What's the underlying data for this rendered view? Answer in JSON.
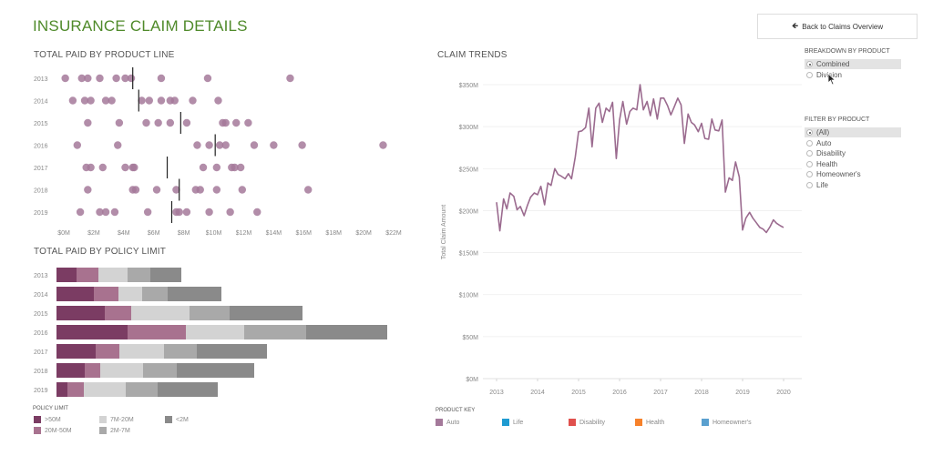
{
  "header": {
    "title": "INSURANCE CLAIM DETAILS",
    "back_button": "Back to Claims Overview"
  },
  "controls": {
    "breakdown": {
      "label": "BREAKDOWN BY PRODUCT",
      "options": [
        "Combined",
        "Division"
      ],
      "selected": "Combined"
    },
    "filter": {
      "label": "FILTER BY PRODUCT",
      "options": [
        "(All)",
        "Auto",
        "Disability",
        "Health",
        "Homeowner's",
        "Life"
      ],
      "selected": "(All)"
    }
  },
  "colors": {
    "title": "#4f8a2a",
    "dot": "#a4799a",
    "median": "#222222",
    "line": "#9b6b8f",
    "policy": {
      ">50M": "#7b3c63",
      "20M-50M": "#a8728f",
      "7M-20M": "#d3d3d3",
      "2M-7M": "#a9a9a9",
      "<2M": "#8a8a8a"
    },
    "product": {
      "Auto": "#a4799a",
      "Life": "#1f9bd1",
      "Disability": "#e0504d",
      "Health": "#f7812a",
      "Homeowner's": "#5aa0cf"
    }
  },
  "chart_data": [
    {
      "type": "scatter",
      "title": "TOTAL PAID BY PRODUCT LINE",
      "xlabel": "",
      "ylabel": "",
      "x_ticks": [
        "$0M",
        "$2M",
        "$4M",
        "$6M",
        "$8M",
        "$10M",
        "$12M",
        "$14M",
        "$16M",
        "$18M",
        "$20M",
        "$22M"
      ],
      "xlim": [
        0,
        22
      ],
      "categories": [
        "2013",
        "2014",
        "2015",
        "2016",
        "2017",
        "2018",
        "2019"
      ],
      "series": [
        {
          "name": "2013",
          "values": [
            0.1,
            1.2,
            1.6,
            2.4,
            3.5,
            4.1,
            4.5,
            6.5,
            9.6,
            15.1
          ],
          "median": 4.6
        },
        {
          "name": "2014",
          "values": [
            0.6,
            1.4,
            1.8,
            2.8,
            3.2,
            5.2,
            5.7,
            6.5,
            7.1,
            7.4,
            8.6,
            10.3
          ],
          "median": 5.0
        },
        {
          "name": "2015",
          "values": [
            1.6,
            3.7,
            5.5,
            6.3,
            7.1,
            8.2,
            10.6,
            10.8,
            11.5,
            12.3
          ],
          "median": 7.8
        },
        {
          "name": "2016",
          "values": [
            0.9,
            3.6,
            8.9,
            9.7,
            10.4,
            10.8,
            12.7,
            14.0,
            15.9,
            21.3
          ],
          "median": 10.1
        },
        {
          "name": "2017",
          "values": [
            1.5,
            1.8,
            2.6,
            4.1,
            4.6,
            4.7,
            9.3,
            10.2,
            11.2,
            11.4,
            11.8
          ],
          "median": 6.9
        },
        {
          "name": "2018",
          "values": [
            1.6,
            4.6,
            4.8,
            6.2,
            7.5,
            8.8,
            9.1,
            10.2,
            11.9,
            16.3
          ],
          "median": 7.7
        },
        {
          "name": "2019",
          "values": [
            1.1,
            2.4,
            2.8,
            3.4,
            5.6,
            7.5,
            7.7,
            8.2,
            9.7,
            11.1,
            12.9
          ],
          "median": 7.2
        }
      ]
    },
    {
      "type": "bar",
      "orientation": "horizontal",
      "stacked": true,
      "title": "TOTAL PAID BY POLICY LIMIT",
      "categories": [
        "2013",
        "2014",
        "2015",
        "2016",
        "2017",
        "2018",
        "2019"
      ],
      "legend_title": "POLICY LIMIT",
      "legend_placement": "bottom-left",
      "series": [
        {
          "name": ">50M",
          "values": [
            22,
            41,
            53,
            78,
            43,
            31,
            12
          ]
        },
        {
          "name": "20M-50M",
          "values": [
            24,
            27,
            29,
            64,
            26,
            17,
            18
          ]
        },
        {
          "name": "7M-20M",
          "values": [
            32,
            26,
            64,
            64,
            49,
            47,
            46
          ]
        },
        {
          "name": "2M-7M",
          "values": [
            25,
            28,
            44,
            68,
            36,
            37,
            35
          ]
        },
        {
          "name": "<2M",
          "values": [
            34,
            59,
            80,
            89,
            77,
            85,
            66
          ]
        }
      ],
      "legend_order": [
        ">50M",
        "20M-50M",
        "7M-20M",
        "2M-7M",
        "<2M"
      ]
    },
    {
      "type": "line",
      "title": "CLAIM TRENDS",
      "xlabel": "",
      "ylabel": "Total Claim Amount",
      "ylim": [
        0,
        350
      ],
      "y_ticks": [
        "$0M",
        "$50M",
        "$100M",
        "$150M",
        "$200M",
        "$250M",
        "$300M",
        "$350M"
      ],
      "x_ticks": [
        "2013",
        "2014",
        "2015",
        "2016",
        "2017",
        "2018",
        "2019",
        "2020"
      ],
      "xlim": [
        2013,
        2020
      ],
      "legend_title": "PRODUCT KEY",
      "legend": [
        "Auto",
        "Life",
        "Disability",
        "Health",
        "Homeowner's"
      ],
      "series": [
        {
          "name": "Combined",
          "x": [
            2013.0,
            2013.08,
            2013.17,
            2013.25,
            2013.33,
            2013.42,
            2013.5,
            2013.58,
            2013.67,
            2013.75,
            2013.83,
            2013.92,
            2014.0,
            2014.08,
            2014.17,
            2014.25,
            2014.33,
            2014.42,
            2014.5,
            2014.58,
            2014.67,
            2014.75,
            2014.83,
            2014.92,
            2015.0,
            2015.08,
            2015.17,
            2015.25,
            2015.33,
            2015.42,
            2015.5,
            2015.58,
            2015.67,
            2015.75,
            2015.83,
            2015.92,
            2016.0,
            2016.08,
            2016.17,
            2016.25,
            2016.33,
            2016.42,
            2016.5,
            2016.58,
            2016.67,
            2016.75,
            2016.83,
            2016.92,
            2017.0,
            2017.08,
            2017.17,
            2017.25,
            2017.33,
            2017.42,
            2017.5,
            2017.58,
            2017.67,
            2017.75,
            2017.83,
            2017.92,
            2018.0,
            2018.08,
            2018.17,
            2018.25,
            2018.33,
            2018.42,
            2018.5,
            2018.58,
            2018.67,
            2018.75,
            2018.83,
            2018.92,
            2019.0,
            2019.08,
            2019.17,
            2019.25,
            2019.33,
            2019.42,
            2019.5,
            2019.58,
            2019.67,
            2019.75,
            2019.83,
            2019.92,
            2020.0
          ],
          "values": [
            210,
            176,
            214,
            202,
            221,
            217,
            201,
            205,
            194,
            206,
            216,
            221,
            219,
            229,
            207,
            233,
            230,
            250,
            243,
            241,
            238,
            244,
            238,
            264,
            294,
            295,
            299,
            322,
            276,
            322,
            328,
            305,
            322,
            318,
            329,
            262,
            308,
            330,
            303,
            318,
            322,
            320,
            350,
            320,
            330,
            313,
            333,
            309,
            334,
            334,
            325,
            314,
            323,
            334,
            326,
            280,
            315,
            305,
            302,
            294,
            304,
            286,
            285,
            309,
            296,
            295,
            308,
            222,
            239,
            236,
            258,
            240,
            177,
            191,
            198,
            191,
            186,
            180,
            178,
            174,
            181,
            189,
            185,
            182,
            180
          ]
        }
      ]
    }
  ]
}
